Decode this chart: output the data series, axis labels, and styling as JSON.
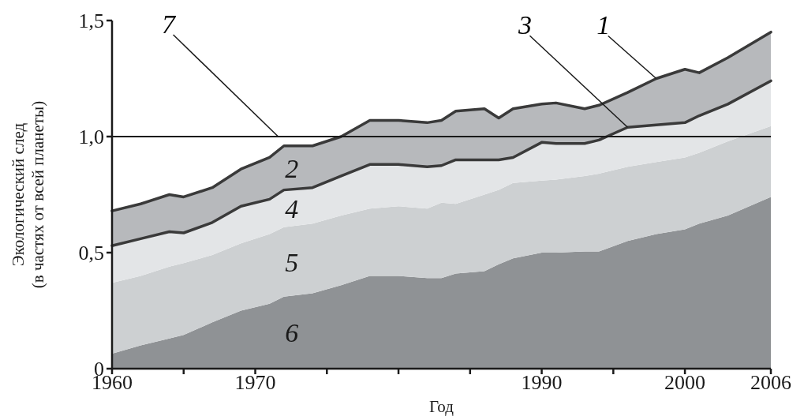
{
  "chart_data": {
    "type": "area",
    "stacked": true,
    "xlabel": "Год",
    "ylabel": "Экологический след (в частях от всей планеты)",
    "x": [
      1960,
      1962,
      1964,
      1965,
      1967,
      1969,
      1971,
      1972,
      1974,
      1976,
      1978,
      1980,
      1982,
      1983,
      1984,
      1986,
      1987,
      1988,
      1990,
      1991,
      1993,
      1994,
      1996,
      1998,
      2000,
      2001,
      2003,
      2006
    ],
    "series": [
      {
        "name": "6",
        "color": "#8f9295",
        "values": [
          0.065,
          0.1,
          0.13,
          0.145,
          0.2,
          0.25,
          0.28,
          0.31,
          0.325,
          0.36,
          0.4,
          0.4,
          0.39,
          0.39,
          0.41,
          0.42,
          0.45,
          0.475,
          0.5,
          0.5,
          0.505,
          0.505,
          0.55,
          0.58,
          0.6,
          0.625,
          0.66,
          0.74
        ]
      },
      {
        "name": "5",
        "color": "#cdd0d2",
        "values": [
          0.305,
          0.3,
          0.31,
          0.31,
          0.29,
          0.29,
          0.3,
          0.3,
          0.3,
          0.3,
          0.29,
          0.3,
          0.3,
          0.325,
          0.3,
          0.33,
          0.32,
          0.325,
          0.31,
          0.315,
          0.325,
          0.335,
          0.32,
          0.31,
          0.31,
          0.305,
          0.32,
          0.305
        ]
      },
      {
        "name": "4",
        "color": "#e3e5e7",
        "line_style": "solid",
        "values": [
          0.16,
          0.16,
          0.15,
          0.13,
          0.14,
          0.16,
          0.15,
          0.16,
          0.155,
          0.17,
          0.19,
          0.18,
          0.18,
          0.16,
          0.19,
          0.15,
          0.13,
          0.11,
          0.165,
          0.155,
          0.14,
          0.145,
          0.17,
          0.16,
          0.15,
          0.16,
          0.16,
          0.195
        ]
      },
      {
        "name": "2",
        "color": "#b7b9bc",
        "line_style": "solid",
        "values": [
          0.15,
          0.15,
          0.16,
          0.155,
          0.15,
          0.16,
          0.18,
          0.19,
          0.18,
          0.17,
          0.19,
          0.19,
          0.19,
          0.195,
          0.21,
          0.22,
          0.18,
          0.21,
          0.165,
          0.175,
          0.15,
          0.15,
          0.15,
          0.2,
          0.23,
          0.185,
          0.2,
          0.21
        ]
      }
    ],
    "xlim": [
      1960,
      2006
    ],
    "ylim": [
      0,
      1.5
    ],
    "xticks": [
      1960,
      {
        "value": 1965,
        "label": null
      },
      1970,
      {
        "value": 1975,
        "label": null
      },
      {
        "value": 1980,
        "label": null
      },
      {
        "value": 1985,
        "label": null
      },
      1990,
      {
        "value": 1995,
        "label": null
      },
      2000,
      2006
    ],
    "yticks": [
      0,
      {
        "value": 0.5,
        "label": "0,5"
      },
      {
        "value": 1,
        "label": "1,0"
      },
      {
        "value": 1.5,
        "label": "1,5"
      }
    ],
    "ref_lines": [
      {
        "axis": "y",
        "value": 1,
        "color": "#1a1a1a"
      }
    ],
    "annotations": [
      {
        "text": "7",
        "x": 1971.6,
        "y": 1
      },
      {
        "text": "1",
        "x": 1998,
        "y": 1.25
      },
      {
        "text": "3",
        "x": 1996,
        "y": 1.04
      }
    ]
  }
}
